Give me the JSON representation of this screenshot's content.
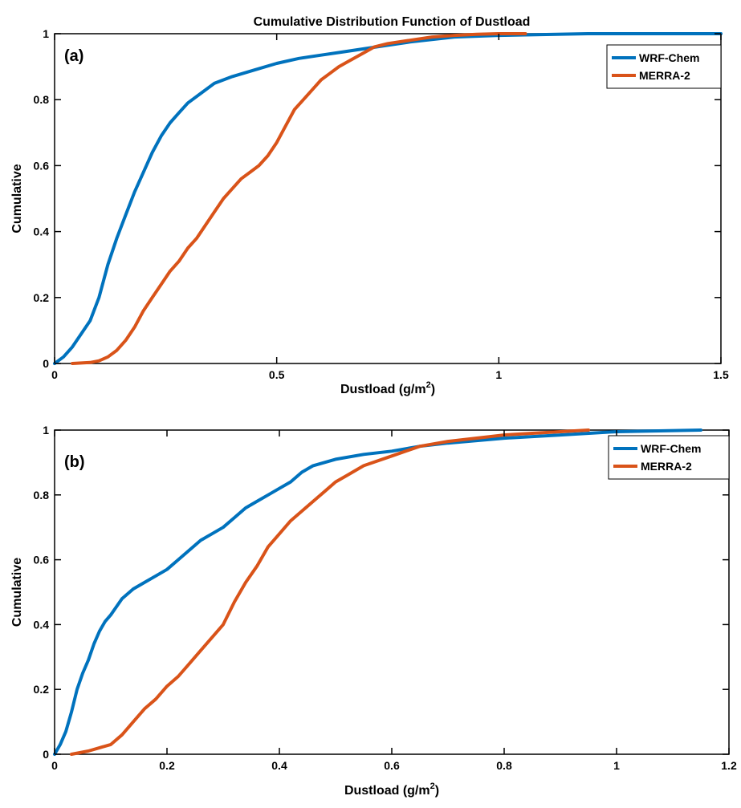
{
  "figure_title": "Cumulative Distribution Function of Dustload",
  "colors": {
    "wrf": "#0072BD",
    "merra": "#D95319",
    "axis": "#000000"
  },
  "chart_data": [
    {
      "type": "line",
      "panel_label": "(a)",
      "xlabel_main": "Dustload (g/m",
      "xlabel_sup": "2",
      "xlabel_tail": ")",
      "ylabel": "Cumulative",
      "xlim": [
        0,
        1.5
      ],
      "ylim": [
        0,
        1
      ],
      "xticks": [
        0,
        0.5,
        1,
        1.5
      ],
      "xtick_labels": [
        "0",
        "0.5",
        "1",
        "1.5"
      ],
      "yticks": [
        0,
        0.2,
        0.4,
        0.6,
        0.8,
        1
      ],
      "ytick_labels": [
        "0",
        "0.2",
        "0.4",
        "0.6",
        "0.8",
        "1"
      ],
      "legend_position": "top-right",
      "grid": false,
      "series": [
        {
          "name": "WRF-Chem",
          "color": "#0072BD",
          "x": [
            0,
            0.02,
            0.04,
            0.06,
            0.08,
            0.1,
            0.12,
            0.14,
            0.16,
            0.18,
            0.2,
            0.22,
            0.24,
            0.26,
            0.28,
            0.3,
            0.33,
            0.36,
            0.4,
            0.45,
            0.5,
            0.55,
            0.6,
            0.65,
            0.7,
            0.75,
            0.8,
            0.9,
            1.0,
            1.2,
            1.5
          ],
          "y": [
            0,
            0.02,
            0.05,
            0.09,
            0.13,
            0.2,
            0.3,
            0.38,
            0.45,
            0.52,
            0.58,
            0.64,
            0.69,
            0.73,
            0.76,
            0.79,
            0.82,
            0.85,
            0.87,
            0.89,
            0.91,
            0.925,
            0.935,
            0.945,
            0.955,
            0.965,
            0.975,
            0.99,
            0.995,
            1.0,
            1.0
          ]
        },
        {
          "name": "MERRA-2",
          "color": "#D95319",
          "x": [
            0.04,
            0.08,
            0.1,
            0.12,
            0.14,
            0.16,
            0.18,
            0.2,
            0.22,
            0.24,
            0.26,
            0.28,
            0.3,
            0.32,
            0.34,
            0.36,
            0.38,
            0.4,
            0.42,
            0.44,
            0.46,
            0.48,
            0.5,
            0.52,
            0.54,
            0.56,
            0.58,
            0.6,
            0.62,
            0.64,
            0.66,
            0.68,
            0.7,
            0.72,
            0.75,
            0.8,
            0.85,
            0.9,
            0.95,
            1.0,
            1.06
          ],
          "y": [
            0,
            0.003,
            0.008,
            0.02,
            0.04,
            0.07,
            0.11,
            0.16,
            0.2,
            0.24,
            0.28,
            0.31,
            0.35,
            0.38,
            0.42,
            0.46,
            0.5,
            0.53,
            0.56,
            0.58,
            0.6,
            0.63,
            0.67,
            0.72,
            0.77,
            0.8,
            0.83,
            0.86,
            0.88,
            0.9,
            0.915,
            0.93,
            0.945,
            0.96,
            0.97,
            0.98,
            0.99,
            0.995,
            0.998,
            1.0,
            1.0
          ]
        }
      ]
    },
    {
      "type": "line",
      "panel_label": "(b)",
      "xlabel_main": "Dustload (g/m",
      "xlabel_sup": "2",
      "xlabel_tail": ")",
      "ylabel": "Cumulative",
      "xlim": [
        0,
        1.2
      ],
      "ylim": [
        0,
        1
      ],
      "xticks": [
        0,
        0.2,
        0.4,
        0.6,
        0.8,
        1,
        1.2
      ],
      "xtick_labels": [
        "0",
        "0.2",
        "0.4",
        "0.6",
        "0.8",
        "1",
        "1.2"
      ],
      "yticks": [
        0,
        0.2,
        0.4,
        0.6,
        0.8,
        1
      ],
      "ytick_labels": [
        "0",
        "0.2",
        "0.4",
        "0.6",
        "0.8",
        "1"
      ],
      "legend_position": "top-right",
      "grid": false,
      "series": [
        {
          "name": "WRF-Chem",
          "color": "#0072BD",
          "x": [
            0,
            0.01,
            0.02,
            0.03,
            0.04,
            0.05,
            0.06,
            0.07,
            0.08,
            0.09,
            0.1,
            0.12,
            0.14,
            0.16,
            0.18,
            0.2,
            0.22,
            0.24,
            0.26,
            0.28,
            0.3,
            0.32,
            0.34,
            0.36,
            0.38,
            0.4,
            0.42,
            0.44,
            0.46,
            0.48,
            0.5,
            0.55,
            0.6,
            0.65,
            0.7,
            0.8,
            0.9,
            1.0,
            1.15
          ],
          "y": [
            0,
            0.03,
            0.07,
            0.13,
            0.2,
            0.25,
            0.29,
            0.34,
            0.38,
            0.41,
            0.43,
            0.48,
            0.51,
            0.53,
            0.55,
            0.57,
            0.6,
            0.63,
            0.66,
            0.68,
            0.7,
            0.73,
            0.76,
            0.78,
            0.8,
            0.82,
            0.84,
            0.87,
            0.89,
            0.9,
            0.91,
            0.925,
            0.935,
            0.95,
            0.96,
            0.975,
            0.985,
            0.995,
            1.0
          ]
        },
        {
          "name": "MERRA-2",
          "color": "#D95319",
          "x": [
            0.03,
            0.06,
            0.08,
            0.1,
            0.12,
            0.14,
            0.16,
            0.18,
            0.2,
            0.22,
            0.24,
            0.26,
            0.28,
            0.3,
            0.32,
            0.34,
            0.36,
            0.38,
            0.4,
            0.42,
            0.44,
            0.46,
            0.48,
            0.5,
            0.52,
            0.55,
            0.6,
            0.65,
            0.7,
            0.75,
            0.8,
            0.85,
            0.9,
            0.95
          ],
          "y": [
            0,
            0.01,
            0.02,
            0.03,
            0.06,
            0.1,
            0.14,
            0.17,
            0.21,
            0.24,
            0.28,
            0.32,
            0.36,
            0.4,
            0.47,
            0.53,
            0.58,
            0.64,
            0.68,
            0.72,
            0.75,
            0.78,
            0.81,
            0.84,
            0.86,
            0.89,
            0.92,
            0.95,
            0.965,
            0.975,
            0.985,
            0.99,
            0.995,
            1.0
          ]
        }
      ]
    }
  ]
}
